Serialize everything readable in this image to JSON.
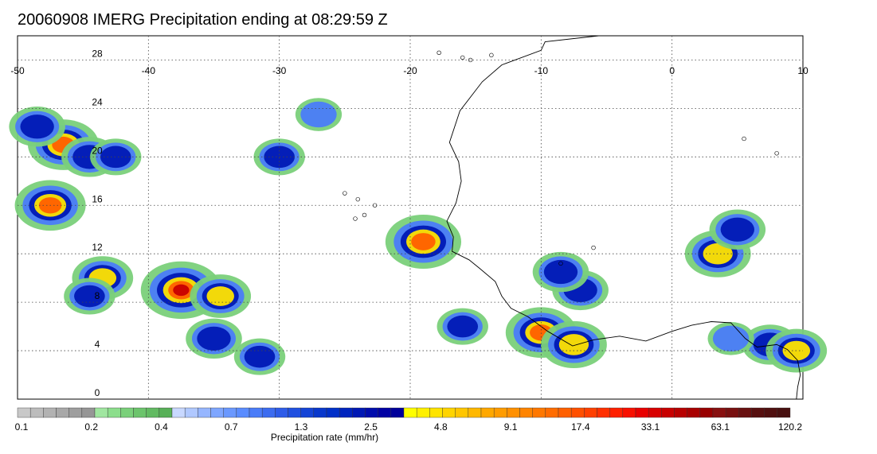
{
  "title": "20060908 IMERG Precipitation ending at 08:29:59 Z",
  "map": {
    "lon_range": [
      -50,
      10
    ],
    "lat_range": [
      0,
      30
    ],
    "lon_ticks": [
      -50,
      -40,
      -30,
      -20,
      -10,
      0,
      10
    ],
    "lat_ticks": [
      0,
      4,
      8,
      12,
      16,
      20,
      24,
      28
    ],
    "gridlines": true
  },
  "colorbar": {
    "title": "Precipitation rate (mm/hr)",
    "tick_labels": [
      "0.1",
      "0.2",
      "0.4",
      "0.7",
      "1.3",
      "2.5",
      "4.8",
      "9.1",
      "17.4",
      "33.1",
      "63.1",
      "120.2"
    ],
    "colors": [
      "#c8c8c8",
      "#bcbcbc",
      "#b2b2b2",
      "#a8a8a8",
      "#9e9e9e",
      "#969696",
      "#a0e6a0",
      "#8cde8c",
      "#7ad07a",
      "#6cc46c",
      "#62ba62",
      "#58b058",
      "#c8d8ff",
      "#b0c8ff",
      "#96b6ff",
      "#7ea6ff",
      "#6a98ff",
      "#5a8cff",
      "#4a7cf8",
      "#3c6cf0",
      "#2e5ce8",
      "#2050e0",
      "#1444d6",
      "#0838cc",
      "#0030c8",
      "#0024be",
      "#0018b4",
      "#000cac",
      "#0000a4",
      "#00009a",
      "#ffff00",
      "#fff000",
      "#ffe400",
      "#ffd400",
      "#ffc600",
      "#ffb800",
      "#ffa800",
      "#ff9c00",
      "#ff9000",
      "#ff8400",
      "#ff7800",
      "#ff6c00",
      "#ff6000",
      "#ff5000",
      "#ff4000",
      "#ff3000",
      "#ff2000",
      "#f81000",
      "#e80000",
      "#d80000",
      "#c80000",
      "#b80000",
      "#a80000",
      "#980000",
      "#881010",
      "#781010",
      "#681010",
      "#581010",
      "#501010",
      "#481010"
    ]
  },
  "precip_cells": [
    {
      "lon": -46.5,
      "lat": 21.0,
      "level": 9
    },
    {
      "lon": -44.5,
      "lat": 20.0,
      "level": 6
    },
    {
      "lon": -42.5,
      "lat": 20.0,
      "level": 5
    },
    {
      "lon": -48.5,
      "lat": 22.5,
      "level": 6
    },
    {
      "lon": -47.5,
      "lat": 16.0,
      "level": 9
    },
    {
      "lon": -43.5,
      "lat": 10.0,
      "level": 7
    },
    {
      "lon": -44.5,
      "lat": 8.5,
      "level": 5
    },
    {
      "lon": -37.5,
      "lat": 9.0,
      "level": 11
    },
    {
      "lon": -34.5,
      "lat": 8.5,
      "level": 7
    },
    {
      "lon": -35.0,
      "lat": 5.0,
      "level": 6
    },
    {
      "lon": -31.5,
      "lat": 3.5,
      "level": 5
    },
    {
      "lon": -19.0,
      "lat": 13.0,
      "level": 10
    },
    {
      "lon": -16.0,
      "lat": 6.0,
      "level": 5
    },
    {
      "lon": -10.0,
      "lat": 5.5,
      "level": 9
    },
    {
      "lon": -7.5,
      "lat": 4.5,
      "level": 8
    },
    {
      "lon": -7.0,
      "lat": 9.0,
      "level": 6
    },
    {
      "lon": -8.5,
      "lat": 10.5,
      "level": 6
    },
    {
      "lon": 3.5,
      "lat": 12.0,
      "level": 8
    },
    {
      "lon": 5.0,
      "lat": 14.0,
      "level": 6
    },
    {
      "lon": 7.5,
      "lat": 4.5,
      "level": 6
    },
    {
      "lon": 9.5,
      "lat": 4.0,
      "level": 7
    },
    {
      "lon": 4.5,
      "lat": 5.0,
      "level": 4
    },
    {
      "lon": -30.0,
      "lat": 20.0,
      "level": 5
    },
    {
      "lon": -27.0,
      "lat": 23.5,
      "level": 4
    }
  ]
}
